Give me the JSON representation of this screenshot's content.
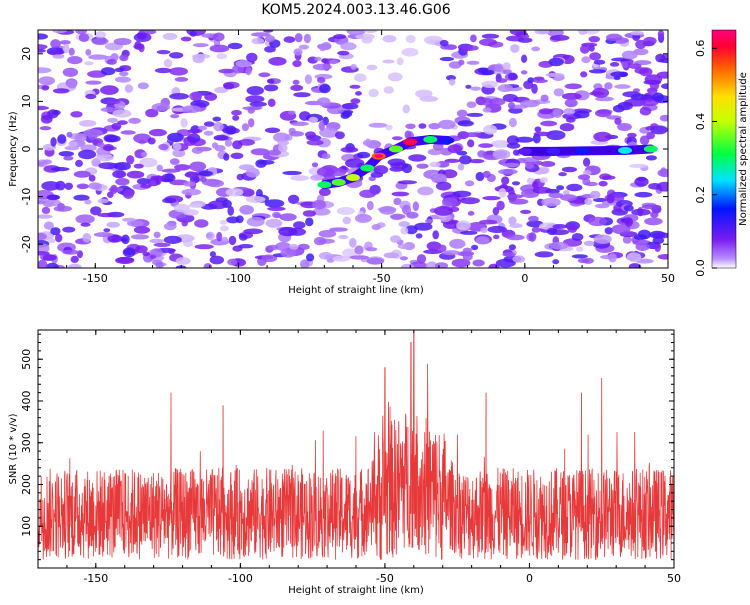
{
  "title": "KOM5.2024.003.13.46.G06",
  "chart_data": [
    {
      "type": "heatmap",
      "xlabel": "Height of straight line (km)",
      "ylabel": "Frequency (Hz)",
      "xlim": [
        -170,
        50
      ],
      "ylim": [
        -25,
        25
      ],
      "xticks": [
        "-150",
        "-100",
        "-50",
        "0",
        "50"
      ],
      "xtick_values": [
        -150,
        -100,
        -50,
        0,
        50
      ],
      "yticks": [
        "-20",
        "-10",
        "0",
        "10",
        "20"
      ],
      "ytick_values": [
        -20,
        -10,
        0,
        10,
        20
      ],
      "colorbar": {
        "label": "Normalized spectral amplitude",
        "range": [
          0,
          0.65
        ],
        "ticks": [
          "0.0",
          "0.2",
          "0.4",
          "0.6"
        ],
        "tick_values": [
          0,
          0.2,
          0.4,
          0.6
        ]
      },
      "signal_track": [
        {
          "x": -70,
          "y": -7.5,
          "v": 0.3
        },
        {
          "x": -65,
          "y": -7,
          "v": 0.35
        },
        {
          "x": -60,
          "y": -6,
          "v": 0.4
        },
        {
          "x": -55,
          "y": -4,
          "v": 0.3
        },
        {
          "x": -51,
          "y": -1.5,
          "v": 0.55
        },
        {
          "x": -45,
          "y": 0,
          "v": 0.35
        },
        {
          "x": -40,
          "y": 1.5,
          "v": 0.6
        },
        {
          "x": -33,
          "y": 2,
          "v": 0.3
        },
        {
          "x": -27,
          "y": 1.8,
          "v": 0.15
        },
        {
          "x": 0,
          "y": -0.5,
          "v": 0.1
        },
        {
          "x": 10,
          "y": -0.5,
          "v": 0.12
        },
        {
          "x": 20,
          "y": -0.4,
          "v": 0.15
        },
        {
          "x": 35,
          "y": -0.3,
          "v": 0.25
        },
        {
          "x": 44,
          "y": 0,
          "v": 0.3
        }
      ],
      "background_note_scale": 0.12
    },
    {
      "type": "line",
      "xlabel": "Height of straight line (km)",
      "ylabel": "SNR (10 * v/v)",
      "xlim": [
        -170,
        50
      ],
      "ylim": [
        0,
        570
      ],
      "xticks": [
        "-150",
        "-100",
        "-50",
        "0",
        "50"
      ],
      "xtick_values": [
        -150,
        -100,
        -50,
        0,
        50
      ],
      "yticks": [
        "100",
        "200",
        "300",
        "400",
        "500"
      ],
      "ytick_values": [
        100,
        200,
        300,
        400,
        500
      ],
      "series": [
        {
          "color": "#e8393a",
          "peaks": [
            {
              "x": -124,
              "y": 420
            },
            {
              "x": -106,
              "y": 390
            },
            {
              "x": -40,
              "y": 570
            },
            {
              "x": -41,
              "y": 540
            },
            {
              "x": -50,
              "y": 480
            },
            {
              "x": 25,
              "y": 455
            },
            {
              "x": 18,
              "y": 420
            },
            {
              "x": -15,
              "y": 420
            }
          ],
          "baseline": 130
        }
      ]
    }
  ]
}
